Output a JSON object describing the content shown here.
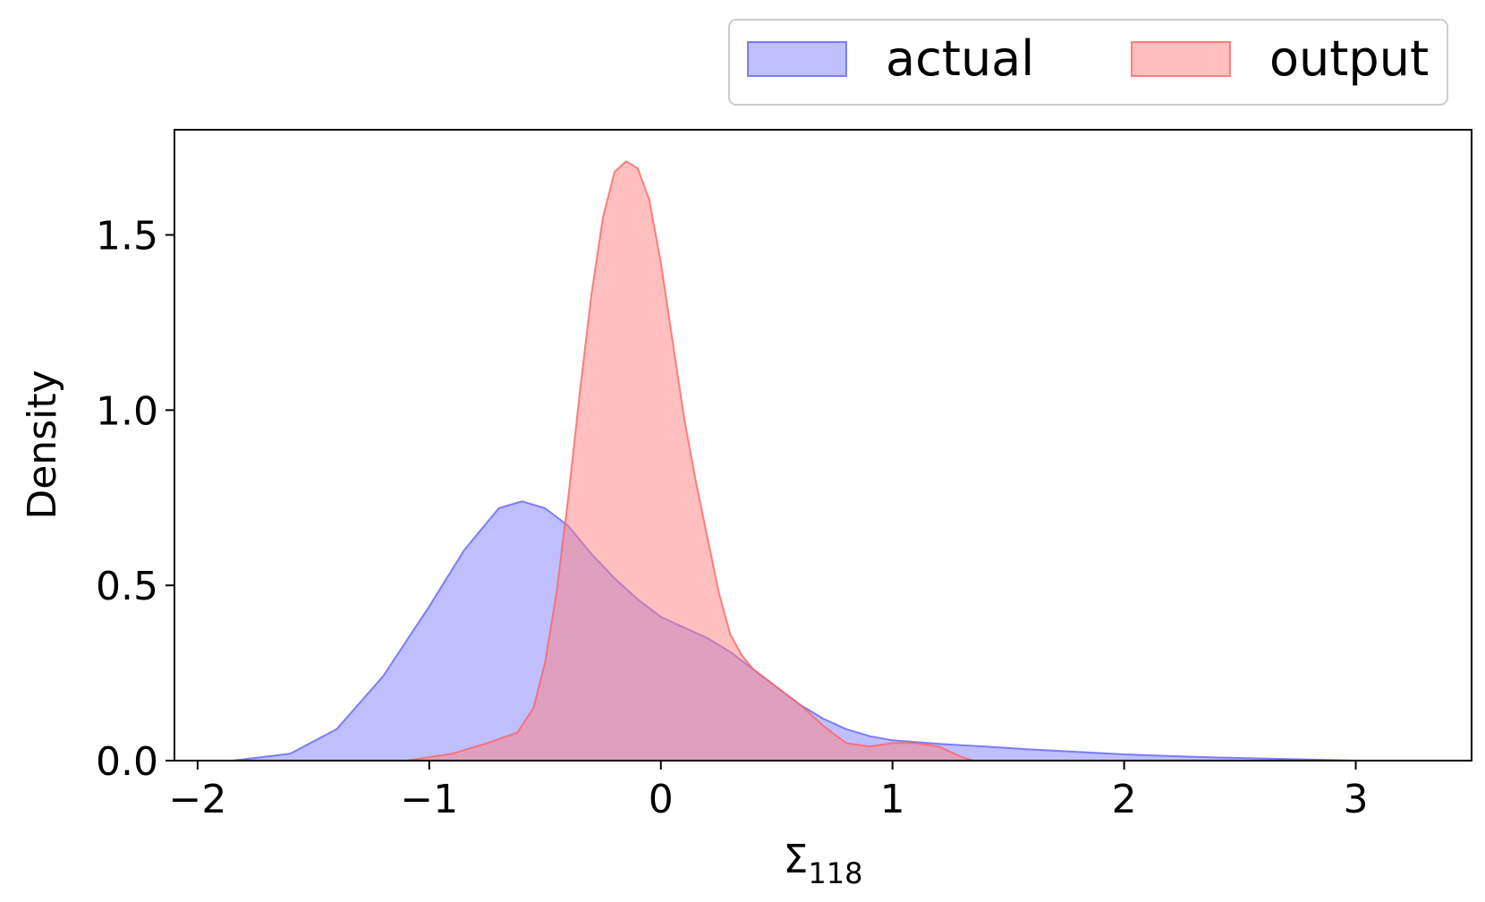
{
  "chart_data": {
    "type": "area",
    "xlabel_main": "Σ",
    "xlabel_sub": "118",
    "ylabel": "Density",
    "xlim": [
      -2.1,
      3.5
    ],
    "ylim": [
      0,
      1.8
    ],
    "x_ticks": [
      -2,
      -1,
      0,
      1,
      2,
      3
    ],
    "x_tick_labels": [
      "−2",
      "−1",
      "0",
      "1",
      "2",
      "3"
    ],
    "y_ticks": [
      0,
      0.5,
      1.0,
      1.5
    ],
    "y_tick_labels": [
      "0.0",
      "0.5",
      "1.0",
      "1.5"
    ],
    "grid": false,
    "legend_position": "top-right, above plot",
    "series": [
      {
        "name": "actual",
        "fill": "#8080ff",
        "stroke": "#6464ff",
        "x": [
          -1.85,
          -1.6,
          -1.4,
          -1.2,
          -1.0,
          -0.85,
          -0.7,
          -0.6,
          -0.5,
          -0.4,
          -0.3,
          -0.2,
          -0.1,
          0.0,
          0.1,
          0.2,
          0.3,
          0.4,
          0.5,
          0.6,
          0.7,
          0.8,
          0.9,
          1.0,
          1.2,
          1.4,
          1.6,
          1.8,
          2.0,
          2.2,
          2.4,
          2.6,
          2.8,
          3.0
        ],
        "y": [
          0.0,
          0.02,
          0.09,
          0.24,
          0.44,
          0.6,
          0.72,
          0.74,
          0.72,
          0.67,
          0.59,
          0.52,
          0.46,
          0.41,
          0.38,
          0.35,
          0.31,
          0.26,
          0.21,
          0.16,
          0.12,
          0.09,
          0.07,
          0.058,
          0.048,
          0.04,
          0.032,
          0.025,
          0.018,
          0.013,
          0.009,
          0.006,
          0.003,
          0.0
        ]
      },
      {
        "name": "output",
        "fill": "#ff8080",
        "stroke": "#ff6464",
        "x": [
          -1.1,
          -0.9,
          -0.75,
          -0.62,
          -0.55,
          -0.5,
          -0.45,
          -0.4,
          -0.35,
          -0.3,
          -0.25,
          -0.2,
          -0.15,
          -0.1,
          -0.05,
          0.0,
          0.05,
          0.1,
          0.15,
          0.2,
          0.25,
          0.3,
          0.35,
          0.4,
          0.5,
          0.6,
          0.7,
          0.8,
          0.9,
          1.0,
          1.1,
          1.2,
          1.3,
          1.35
        ],
        "y": [
          0.0,
          0.02,
          0.05,
          0.08,
          0.15,
          0.28,
          0.48,
          0.75,
          1.05,
          1.33,
          1.55,
          1.68,
          1.71,
          1.69,
          1.6,
          1.42,
          1.2,
          0.98,
          0.8,
          0.64,
          0.48,
          0.36,
          0.3,
          0.26,
          0.21,
          0.16,
          0.1,
          0.05,
          0.04,
          0.05,
          0.05,
          0.04,
          0.01,
          0.0
        ]
      }
    ]
  }
}
